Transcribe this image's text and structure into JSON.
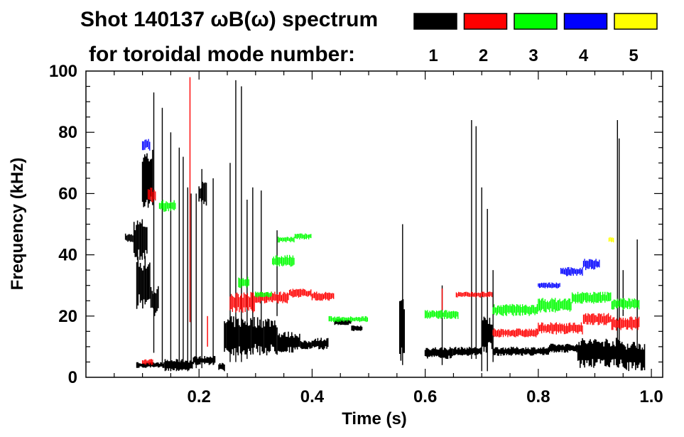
{
  "chart_data": {
    "type": "scatter",
    "title_line1": "Shot 140137 ωB(ω) spectrum",
    "title_line2": "for toroidal mode number:",
    "xlabel": "Time (s)",
    "ylabel": "Frequency (kHz)",
    "xlim": [
      0.0,
      1.02
    ],
    "ylim": [
      0,
      100
    ],
    "x_ticks": [
      {
        "value": 0.2,
        "label": "0.2"
      },
      {
        "value": 0.4,
        "label": "0.4"
      },
      {
        "value": 0.6,
        "label": "0.6"
      },
      {
        "value": 0.8,
        "label": "0.8"
      },
      {
        "value": 1.0,
        "label": "1.0"
      }
    ],
    "y_ticks": [
      {
        "value": 0,
        "label": "0"
      },
      {
        "value": 20,
        "label": "20"
      },
      {
        "value": 40,
        "label": "40"
      },
      {
        "value": 60,
        "label": "60"
      },
      {
        "value": 80,
        "label": "80"
      },
      {
        "value": 100,
        "label": "100"
      }
    ],
    "legend": [
      {
        "n": "1",
        "color": "#000000"
      },
      {
        "n": "2",
        "color": "#ff0000"
      },
      {
        "n": "3",
        "color": "#00ff00"
      },
      {
        "n": "4",
        "color": "#0000ff"
      },
      {
        "n": "5",
        "color": "#ffff00"
      }
    ],
    "series": [
      {
        "name": "n=1",
        "color": "#000000",
        "segments": [
          [
            0.07,
            0.085,
            44,
            47
          ],
          [
            0.085,
            0.11,
            38,
            52
          ],
          [
            0.09,
            0.115,
            22,
            40
          ],
          [
            0.1,
            0.12,
            55,
            75
          ],
          [
            0.115,
            0.13,
            20,
            30
          ],
          [
            0.09,
            0.14,
            3,
            5
          ],
          [
            0.14,
            0.19,
            2,
            6
          ],
          [
            0.19,
            0.23,
            4,
            7
          ],
          [
            0.235,
            0.247,
            2,
            5
          ],
          [
            0.2,
            0.215,
            56,
            64
          ],
          [
            0.245,
            0.34,
            7,
            20
          ],
          [
            0.34,
            0.38,
            8,
            15
          ],
          [
            0.38,
            0.4,
            9,
            12
          ],
          [
            0.4,
            0.43,
            9,
            13
          ],
          [
            0.44,
            0.47,
            17,
            19
          ],
          [
            0.47,
            0.49,
            15,
            17
          ],
          [
            0.555,
            0.565,
            5,
            28
          ],
          [
            0.6,
            0.65,
            6,
            10
          ],
          [
            0.65,
            0.7,
            7,
            10
          ],
          [
            0.7,
            0.72,
            8,
            20
          ],
          [
            0.72,
            0.82,
            7,
            10
          ],
          [
            0.82,
            0.91,
            8,
            11
          ],
          [
            0.87,
            0.95,
            3,
            13
          ],
          [
            0.95,
            0.99,
            2,
            12
          ]
        ],
        "spikes": [
          [
            0.12,
            8,
            93
          ],
          [
            0.135,
            4,
            88
          ],
          [
            0.15,
            2,
            80
          ],
          [
            0.165,
            4,
            75
          ],
          [
            0.172,
            3,
            72
          ],
          [
            0.18,
            2,
            62
          ],
          [
            0.186,
            3,
            60
          ],
          [
            0.195,
            3,
            60
          ],
          [
            0.205,
            3,
            68
          ],
          [
            0.225,
            4,
            65
          ],
          [
            0.255,
            5,
            70
          ],
          [
            0.265,
            5,
            97
          ],
          [
            0.275,
            5,
            95
          ],
          [
            0.285,
            6,
            58
          ],
          [
            0.295,
            8,
            62
          ],
          [
            0.31,
            10,
            61
          ],
          [
            0.338,
            20,
            48
          ],
          [
            0.56,
            4,
            50
          ],
          [
            0.63,
            4,
            30
          ],
          [
            0.682,
            6,
            84
          ],
          [
            0.69,
            6,
            82
          ],
          [
            0.7,
            2,
            62
          ],
          [
            0.71,
            2,
            55
          ],
          [
            0.72,
            5,
            35
          ],
          [
            0.94,
            5,
            84
          ],
          [
            0.943,
            5,
            78
          ],
          [
            0.95,
            20,
            35
          ],
          [
            0.975,
            3,
            45
          ]
        ]
      },
      {
        "name": "n=2",
        "color": "#ff0000",
        "segments": [
          [
            0.11,
            0.125,
            57,
            62
          ],
          [
            0.255,
            0.3,
            21,
            28
          ],
          [
            0.3,
            0.36,
            24,
            28
          ],
          [
            0.36,
            0.4,
            26,
            29
          ],
          [
            0.4,
            0.44,
            25,
            28
          ],
          [
            0.655,
            0.72,
            26,
            28
          ],
          [
            0.72,
            0.8,
            13,
            16
          ],
          [
            0.8,
            0.88,
            14,
            18
          ],
          [
            0.88,
            0.93,
            17,
            21
          ],
          [
            0.93,
            0.98,
            15,
            20
          ],
          [
            0.1,
            0.12,
            4,
            6
          ]
        ],
        "spikes": [
          [
            0.184,
            18,
            98
          ],
          [
            0.215,
            10,
            20
          ],
          [
            0.63,
            22,
            29
          ]
        ]
      },
      {
        "name": "n=3",
        "color": "#00ff00",
        "segments": [
          [
            0.27,
            0.29,
            29,
            33
          ],
          [
            0.34,
            0.37,
            44,
            46
          ],
          [
            0.37,
            0.4,
            45,
            47
          ],
          [
            0.33,
            0.37,
            36,
            40
          ],
          [
            0.3,
            0.33,
            26,
            28
          ],
          [
            0.6,
            0.66,
            19,
            22
          ],
          [
            0.72,
            0.8,
            20,
            24
          ],
          [
            0.8,
            0.86,
            21,
            26
          ],
          [
            0.86,
            0.93,
            24,
            28
          ],
          [
            0.93,
            0.98,
            22,
            26
          ],
          [
            0.43,
            0.5,
            18,
            20
          ],
          [
            0.13,
            0.16,
            54,
            58
          ]
        ],
        "spikes": []
      },
      {
        "name": "n=4",
        "color": "#0000ff",
        "segments": [
          [
            0.1,
            0.115,
            74,
            78
          ],
          [
            0.8,
            0.84,
            29,
            31
          ],
          [
            0.84,
            0.88,
            33,
            36
          ],
          [
            0.88,
            0.91,
            35,
            39
          ]
        ],
        "spikes": []
      },
      {
        "name": "n=5",
        "color": "#ffff00",
        "segments": [
          [
            0.925,
            0.935,
            44,
            46
          ]
        ],
        "spikes": []
      }
    ]
  }
}
